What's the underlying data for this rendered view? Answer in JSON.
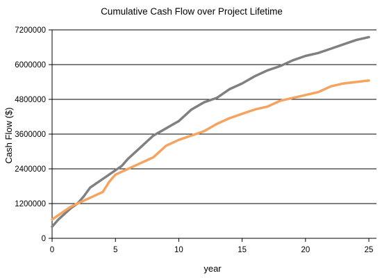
{
  "chart_data": {
    "type": "line",
    "title": "Cumulative Cash Flow over Project Lifetime",
    "xlabel": "year",
    "ylabel": "Cash Flow ($)",
    "xlim": [
      0,
      25.6
    ],
    "ylim": [
      0,
      7200000
    ],
    "xticks": [
      0,
      5,
      10,
      15,
      20,
      25
    ],
    "yticks": [
      0,
      1200000,
      2400000,
      3600000,
      4800000,
      6000000,
      7200000
    ],
    "ytick_labels": [
      "0",
      "1200000",
      "2400000",
      "3600000",
      "4800000",
      "6000000",
      "7200000"
    ],
    "grid": "horizontal",
    "legend": "none",
    "series": [
      {
        "color": "#808080",
        "x": [
          0,
          0.5,
          1,
          1.5,
          2,
          2.5,
          3,
          3.5,
          4,
          4.5,
          5,
          5.5,
          6,
          6.5,
          7,
          7.5,
          8,
          9,
          10,
          11,
          12,
          13,
          14,
          15,
          16,
          17,
          18,
          19,
          20,
          21,
          22,
          23,
          24,
          25
        ],
        "y": [
          400000,
          650000,
          850000,
          1050000,
          1200000,
          1450000,
          1750000,
          1900000,
          2050000,
          2200000,
          2350000,
          2500000,
          2750000,
          2950000,
          3150000,
          3350000,
          3550000,
          3800000,
          4050000,
          4450000,
          4700000,
          4850000,
          5150000,
          5350000,
          5600000,
          5800000,
          5950000,
          6150000,
          6300000,
          6400000,
          6550000,
          6700000,
          6850000,
          6950000
        ]
      },
      {
        "color": "#f4a460",
        "x": [
          0,
          0.5,
          1,
          1.5,
          2,
          2.5,
          3,
          3.5,
          4,
          4.5,
          5,
          5.5,
          6,
          6.5,
          7,
          7.5,
          8,
          9,
          10,
          11,
          12,
          13,
          14,
          15,
          16,
          17,
          18,
          19,
          20,
          21,
          22,
          23,
          24,
          25
        ],
        "y": [
          650000,
          800000,
          950000,
          1100000,
          1200000,
          1300000,
          1400000,
          1500000,
          1600000,
          1950000,
          2200000,
          2300000,
          2400000,
          2500000,
          2600000,
          2700000,
          2800000,
          3200000,
          3400000,
          3550000,
          3700000,
          3950000,
          4150000,
          4300000,
          4450000,
          4550000,
          4750000,
          4850000,
          4950000,
          5050000,
          5250000,
          5350000,
          5400000,
          5450000
        ]
      }
    ]
  }
}
